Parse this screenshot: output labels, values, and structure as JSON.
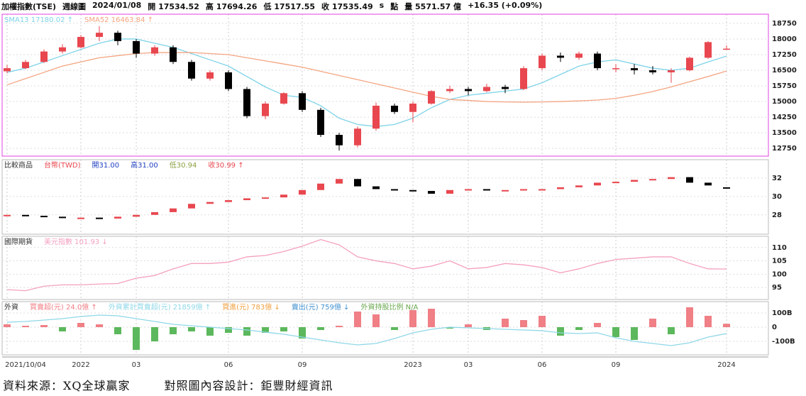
{
  "header": {
    "items": [
      "加權指數(TSE)",
      "週線圖",
      "2024/01/08",
      "開 17534.52",
      "高 17694.26",
      "低 17517.55",
      "收 17535.49",
      "s",
      "點",
      "量 5571.57 億",
      "+16.35 (+0.09%)"
    ]
  },
  "footer": {
    "source": "資料來源：XQ全球贏家",
    "design": "對照圖內容設計：鉅豐財經資訊"
  },
  "chart_data": [
    {
      "type": "candlestick",
      "up_color": "#e8474f",
      "down_color": "#000000",
      "border_color": "#e040e0",
      "ohlc": [
        [
          16450,
          16750,
          16350,
          16600
        ],
        [
          16600,
          17000,
          16550,
          16900
        ],
        [
          16900,
          17500,
          16850,
          17400
        ],
        [
          17400,
          17750,
          17300,
          17600
        ],
        [
          17600,
          18200,
          17550,
          18100
        ],
        [
          18100,
          18620,
          17900,
          18300
        ],
        [
          18300,
          18400,
          17700,
          17900
        ],
        [
          17900,
          18000,
          17100,
          17300
        ],
        [
          17300,
          17700,
          17200,
          17600
        ],
        [
          17600,
          17700,
          16800,
          16900
        ],
        [
          16900,
          17000,
          16000,
          16100
        ],
        [
          16100,
          16500,
          16000,
          16400
        ],
        [
          16400,
          16500,
          15500,
          15600
        ],
        [
          15600,
          15700,
          14200,
          14300
        ],
        [
          14300,
          15000,
          14150,
          14900
        ],
        [
          14900,
          15450,
          14850,
          15400
        ],
        [
          15400,
          15500,
          14500,
          14600
        ],
        [
          14600,
          14700,
          13300,
          13400
        ],
        [
          13400,
          13500,
          12650,
          12900
        ],
        [
          12900,
          13800,
          12800,
          13700
        ],
        [
          13700,
          14950,
          13600,
          14800
        ],
        [
          14800,
          14900,
          14400,
          14500
        ],
        [
          14500,
          15000,
          14000,
          14900
        ],
        [
          14900,
          15550,
          14850,
          15500
        ],
        [
          15500,
          15750,
          15400,
          15600
        ],
        [
          15600,
          15700,
          15300,
          15500
        ],
        [
          15500,
          15850,
          15450,
          15700
        ],
        [
          15700,
          15800,
          15400,
          15600
        ],
        [
          15600,
          16700,
          15550,
          16600
        ],
        [
          16600,
          17300,
          16500,
          17200
        ],
        [
          17200,
          17350,
          16900,
          17100
        ],
        [
          17100,
          17400,
          17000,
          17300
        ],
        [
          17300,
          17400,
          16500,
          16600
        ],
        [
          16600,
          16800,
          16400,
          16600
        ],
        [
          16600,
          16800,
          16300,
          16500
        ],
        [
          16500,
          16700,
          16300,
          16400
        ],
        [
          16400,
          16600,
          15900,
          16500
        ],
        [
          16500,
          17150,
          16450,
          17100
        ],
        [
          17100,
          17900,
          17050,
          17850
        ],
        [
          17534.52,
          17694.26,
          17517.55,
          17535.49
        ]
      ],
      "series": [
        {
          "name": "SMA13 17180.02 ↑",
          "color": "#7fd3e8",
          "values": [
            16400,
            16600,
            16900,
            17200,
            17500,
            17800,
            18000,
            18000,
            17800,
            17600,
            17300,
            17000,
            16700,
            16200,
            15700,
            15300,
            15200,
            14800,
            14200,
            13900,
            13800,
            13900,
            14200,
            14700,
            15100,
            15300,
            15400,
            15500,
            15600,
            15900,
            16300,
            16700,
            16900,
            17000,
            16800,
            16600,
            16500,
            16600,
            16900,
            17180.02
          ]
        },
        {
          "name": "SMA52 16463.84 ↑",
          "color": "#f4a582",
          "values": [
            15800,
            16100,
            16400,
            16700,
            16900,
            17100,
            17200,
            17300,
            17350,
            17350,
            17350,
            17300,
            17250,
            17100,
            16950,
            16800,
            16650,
            16450,
            16250,
            16050,
            15850,
            15650,
            15450,
            15250,
            15100,
            15050,
            15000,
            14980,
            14970,
            14980,
            15000,
            15030,
            15070,
            15150,
            15300,
            15480,
            15700,
            15950,
            16200,
            16463.84
          ]
        }
      ],
      "ylim": [
        12380,
        19190
      ],
      "yticks": [
        12750,
        13500,
        14250,
        15000,
        15750,
        16500,
        17250,
        18000,
        18750
      ],
      "grid": true
    },
    {
      "type": "small-candle",
      "title": "比較商品",
      "up_color": "#e8474f",
      "down_color": "#000000",
      "legend": [
        {
          "text": "台幣(TWD)",
          "color": "#e8474f"
        },
        {
          "text": "開31.00",
          "color": "#2040c0"
        },
        {
          "text": "高31.00",
          "color": "#2040c0"
        },
        {
          "text": "低30.94",
          "color": "#8aa040"
        },
        {
          "text": "收30.99 ↑",
          "color": "#e8474f"
        }
      ],
      "open": [
        27.9,
        28.0,
        27.9,
        27.8,
        27.7,
        27.7,
        27.6,
        27.8,
        28.0,
        28.3,
        28.7,
        29.2,
        29.4,
        29.6,
        29.8,
        29.9,
        30.2,
        30.7,
        31.4,
        31.9,
        31.1,
        30.8,
        30.7,
        30.6,
        30.3,
        30.7,
        30.8,
        30.7,
        30.7,
        30.8,
        30.8,
        31.0,
        31.2,
        31.5,
        31.6,
        31.8,
        31.9,
        32.1,
        31.5,
        31.0
      ],
      "values": [
        28.0,
        27.9,
        27.8,
        27.7,
        27.7,
        27.6,
        27.8,
        28.0,
        28.3,
        28.7,
        29.2,
        29.4,
        29.6,
        29.8,
        29.9,
        30.2,
        30.7,
        31.4,
        31.9,
        31.1,
        30.8,
        30.7,
        30.6,
        30.3,
        30.7,
        30.8,
        30.7,
        30.7,
        30.8,
        30.8,
        31.0,
        31.2,
        31.5,
        31.6,
        31.8,
        31.9,
        32.1,
        31.5,
        31.2,
        30.99
      ],
      "ylim": [
        25.9,
        34
      ],
      "yticks": [
        28,
        30,
        32
      ],
      "grid": true
    },
    {
      "type": "line",
      "title": "國際期貨",
      "series": [
        {
          "name": "美元指數 101.93 ↓",
          "color": "#f4a0c0",
          "values": [
            94.2,
            93.8,
            95.5,
            96,
            96,
            96.3,
            96.5,
            98.5,
            99.5,
            102,
            104,
            104,
            104.5,
            106.5,
            107,
            108.5,
            110.5,
            113,
            111,
            106.5,
            105,
            104,
            102,
            103,
            105,
            102,
            102.5,
            104,
            103.5,
            102.5,
            100.5,
            102,
            104,
            105.5,
            106,
            106.5,
            106.5,
            104,
            102,
            101.93
          ]
        }
      ],
      "ylim": [
        90.5,
        114.2
      ],
      "yticks": [
        95,
        100,
        105,
        110
      ],
      "grid": true
    },
    {
      "type": "bar",
      "title": "外資",
      "categories": [
        "2021/10/04",
        null,
        null,
        null,
        "2022",
        null,
        null,
        "03",
        null,
        null,
        null,
        null,
        "06",
        null,
        null,
        null,
        "09",
        null,
        null,
        null,
        null,
        null,
        "2023",
        null,
        null,
        "03",
        null,
        null,
        null,
        "06",
        null,
        null,
        null,
        "09",
        null,
        null,
        null,
        null,
        null,
        "2024"
      ],
      "series": [
        {
          "name": "買賣超(元) 24.0億 ↑",
          "color": "#f07f86",
          "negative_color": "#5cb85c",
          "values": [
            20,
            10,
            15,
            -30,
            30,
            20,
            -50,
            -160,
            -100,
            -50,
            -30,
            -60,
            -40,
            -60,
            -40,
            -30,
            -80,
            -20,
            10,
            110,
            90,
            -20,
            120,
            130,
            -10,
            20,
            -20,
            60,
            50,
            80,
            -60,
            -20,
            30,
            -70,
            -90,
            60,
            -50,
            140,
            80,
            24
          ]
        },
        {
          "name": "外資累計買賣超(元) 21859億 ↑",
          "color": "#8fd8e8",
          "type": "line",
          "values": [
            35,
            40,
            50,
            60,
            75,
            85,
            80,
            60,
            40,
            20,
            10,
            0,
            -10,
            -20,
            -35,
            -50,
            -70,
            -90,
            -110,
            -125,
            -115,
            -80,
            -40,
            -15,
            0,
            -5,
            -10,
            -15,
            -20,
            -25,
            -40,
            -45,
            -40,
            -75,
            -100,
            -115,
            -130,
            -110,
            -70,
            -45
          ]
        }
      ],
      "extra_legend": [
        {
          "text": "買進(元) 783億 ↓",
          "color": "#f0a040"
        },
        {
          "text": "賣出(元) 759億 ↓",
          "color": "#4090d0"
        },
        {
          "text": "外資持股比例 N/A",
          "color": "#6aa84f"
        }
      ],
      "ylim": [
        -195,
        180
      ],
      "yticks": [
        {
          "value": 100,
          "label": "100B"
        },
        0,
        {
          "value": -100,
          "label": "-100B"
        }
      ],
      "grid": true
    }
  ]
}
